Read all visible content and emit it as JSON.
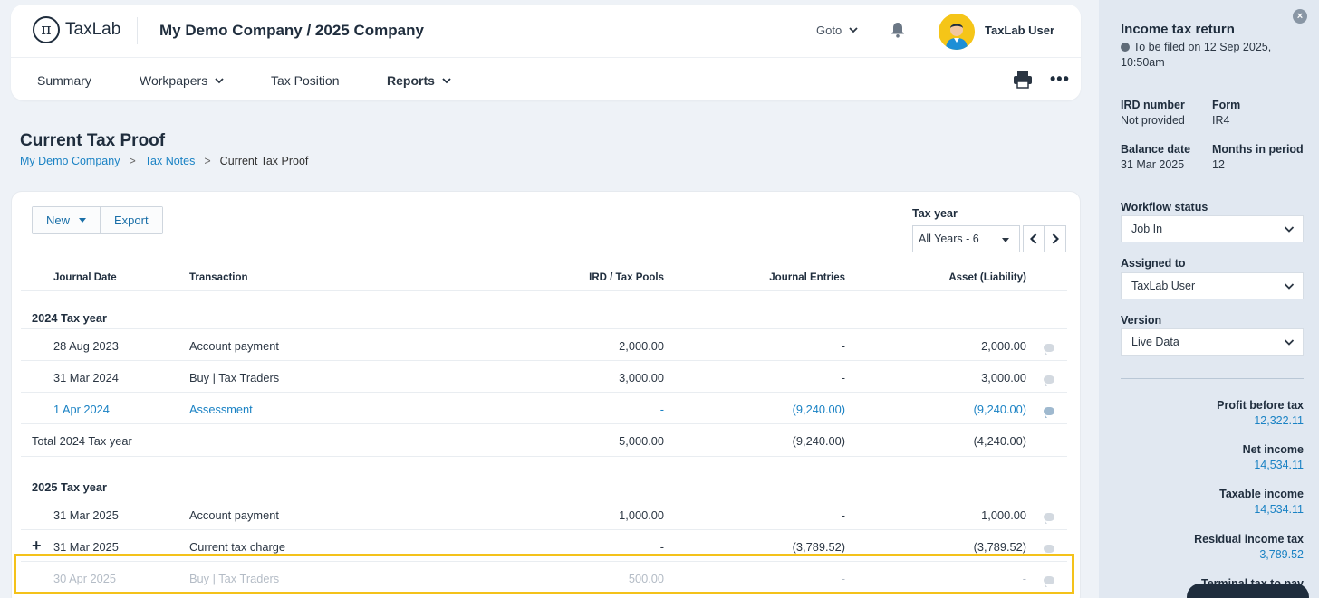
{
  "header": {
    "logo_text": "TaxLab",
    "company": "My Demo Company / 2025 Company",
    "goto_label": "Goto",
    "username": "TaxLab User"
  },
  "nav": {
    "items": [
      {
        "label": "Summary"
      },
      {
        "label": "Workpapers"
      },
      {
        "label": "Tax Position"
      },
      {
        "label": "Reports"
      }
    ]
  },
  "page": {
    "title": "Current Tax Proof",
    "breadcrumb": [
      "My Demo Company",
      "Tax Notes",
      "Current Tax Proof"
    ],
    "breadcrumb_sep": ">"
  },
  "toolbar": {
    "new_label": "New",
    "export_label": "Export",
    "tax_year_label": "Tax year",
    "tax_year_value": "All Years - 6"
  },
  "table": {
    "headers": [
      "Journal Date",
      "Transaction",
      "IRD / Tax Pools",
      "Journal Entries",
      "Asset (Liability)"
    ],
    "groups": [
      {
        "title": "2024 Tax year",
        "rows": [
          {
            "date": "28 Aug 2023",
            "transaction": "Account payment",
            "ird": "2,000.00",
            "je": "-",
            "asset": "2,000.00"
          },
          {
            "date": "31 Mar 2024",
            "transaction": "Buy | Tax Traders",
            "ird": "3,000.00",
            "je": "-",
            "asset": "3,000.00"
          },
          {
            "date": "1 Apr 2024",
            "transaction": "Assessment",
            "ird": "-",
            "je": "(9,240.00)",
            "asset": "(9,240.00)"
          }
        ],
        "total": {
          "label": "Total 2024 Tax year",
          "ird": "5,000.00",
          "je": "(9,240.00)",
          "asset": "(4,240.00)"
        }
      },
      {
        "title": "2025 Tax year",
        "rows": [
          {
            "date": "31 Mar 2025",
            "transaction": "Account payment",
            "ird": "1,000.00",
            "je": "-",
            "asset": "1,000.00"
          },
          {
            "date": "31 Mar 2025",
            "transaction": "Current tax charge",
            "ird": "-",
            "je": "(3,789.52)",
            "asset": "(3,789.52)",
            "expander": "+"
          },
          {
            "date": "30 Apr 2025",
            "transaction": "Buy | Tax Traders",
            "ird": "500.00",
            "je": "-",
            "asset": "-"
          }
        ]
      }
    ]
  },
  "sidebar": {
    "title": "Income tax return",
    "filed": "To be filed on 12 Sep 2025, 10:50am",
    "ird_number_label": "IRD number",
    "ird_number_value": "Not provided",
    "form_label": "Form",
    "form_value": "IR4",
    "balance_date_label": "Balance date",
    "balance_date_value": "31 Mar 2025",
    "months_label": "Months in period",
    "months_value": "12",
    "workflow_label": "Workflow status",
    "workflow_value": "Job In",
    "assigned_label": "Assigned to",
    "assigned_value": "TaxLab User",
    "version_label": "Version",
    "version_value": "Live Data",
    "metrics": [
      {
        "label": "Profit before tax",
        "value": "12,322.11"
      },
      {
        "label": "Net income",
        "value": "14,534.11"
      },
      {
        "label": "Taxable income",
        "value": "14,534.11"
      },
      {
        "label": "Residual income tax",
        "value": "3,789.52"
      },
      {
        "label": "Terminal tax to pay",
        "value": ""
      }
    ]
  },
  "colors": {
    "accent": "#1a82c4",
    "highlight": "#f4c21a",
    "sidebar_bg": "#e1e8f1"
  }
}
